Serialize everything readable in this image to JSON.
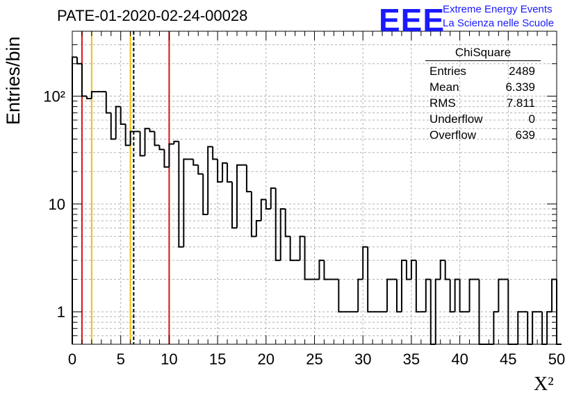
{
  "header": {
    "title": "PATE-01-2020-02-24-00028",
    "logo_text": "EEE",
    "logo_line1": "Extreme Energy Events",
    "logo_line2": "La Scienza nelle Scuole"
  },
  "stats_box": {
    "name": "ChiSquare",
    "rows": [
      {
        "label": "Entries",
        "value": "2489"
      },
      {
        "label": "Mean",
        "value": "6.339"
      },
      {
        "label": "RMS",
        "value": "7.811"
      },
      {
        "label": "Underflow",
        "value": "0"
      },
      {
        "label": "Overflow",
        "value": "639"
      }
    ]
  },
  "colors": {
    "red_line": "#e01010",
    "yellow_line": "#f0c000",
    "hist": "#000000",
    "logo": "#1a1aff"
  },
  "chart_data": {
    "type": "histogram",
    "title": "PATE-01-2020-02-24-00028",
    "xlabel": "X²",
    "ylabel": "Entries/bin",
    "xlim": [
      0,
      50
    ],
    "ylim": [
      0.5,
      400
    ],
    "yscale": "log",
    "grid": true,
    "bin_width": 0.5,
    "x_ticks": [
      "0",
      "5",
      "10",
      "15",
      "20",
      "25",
      "30",
      "35",
      "40",
      "45",
      "50"
    ],
    "y_ticks": [
      {
        "value": 1,
        "label": "1"
      },
      {
        "value": 10,
        "label": "10"
      },
      {
        "value": 100,
        "label": "10²"
      }
    ],
    "counts": [
      230,
      200,
      100,
      95,
      110,
      110,
      110,
      70,
      40,
      80,
      55,
      35,
      47,
      47,
      28,
      50,
      47,
      35,
      32,
      22,
      36,
      38,
      4,
      26,
      26,
      23,
      19,
      8,
      34,
      26,
      16,
      24,
      16,
      6,
      23,
      23,
      13,
      5,
      7,
      11,
      9,
      14,
      3,
      9,
      5,
      3,
      3,
      5,
      2,
      2,
      2,
      3,
      2,
      2,
      2,
      1,
      1,
      1,
      1,
      2,
      4,
      1,
      1,
      1,
      1,
      2,
      2,
      1,
      3,
      2,
      3,
      1,
      1,
      2,
      0,
      2,
      3,
      2,
      1,
      2,
      1,
      1,
      2,
      2,
      0,
      0,
      0,
      1,
      2,
      2,
      0,
      0,
      1,
      1,
      0,
      1,
      1,
      0,
      1,
      2,
      0
    ],
    "vertical_lines": [
      {
        "x": 1,
        "color": "red"
      },
      {
        "x": 2,
        "color": "yellow"
      },
      {
        "x": 6,
        "color": "yellow"
      },
      {
        "x": 6.339,
        "color": "black",
        "style": "dashed"
      },
      {
        "x": 10,
        "color": "red"
      }
    ]
  }
}
